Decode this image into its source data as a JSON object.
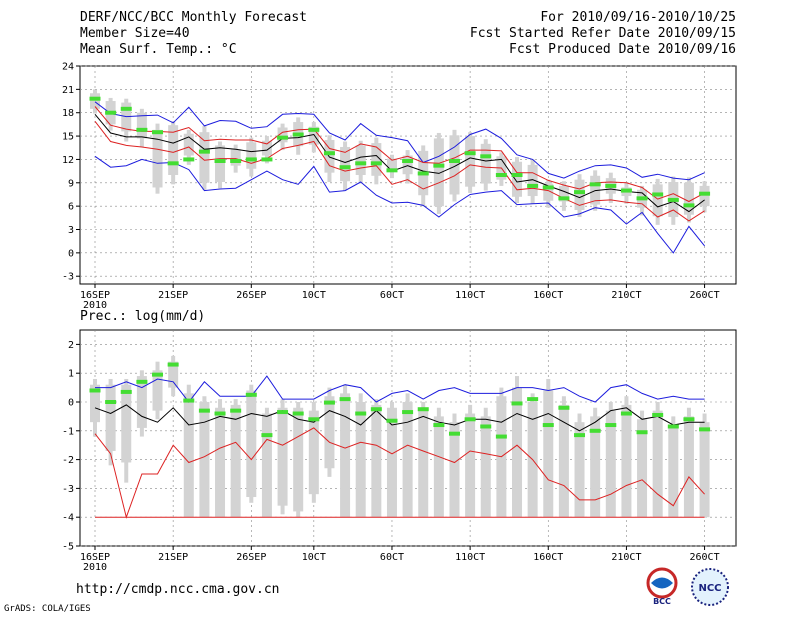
{
  "header": {
    "title": "DERF/NCC/BCC Monthly Forecast",
    "member_size": "Member Size=40",
    "variable": "Mean Surf. Temp.: °C",
    "period": "For 2010/09/16-2010/10/25",
    "start_date": "Fcst Started Refer Date 2010/09/15",
    "produced_date": "Fcst Produced Date 2010/09/16"
  },
  "footer": {
    "url": "http://cmdp.ncc.cma.gov.cn",
    "credit": "GrADS: COLA/IGES"
  },
  "logos": {
    "bcc": "BCC",
    "ncc": "NCC"
  },
  "colors": {
    "gray_bar": "#d3d3d3",
    "median": "#44dd33",
    "black": "#000000",
    "red": "#dd2222",
    "blue": "#1c1cdd",
    "grid": "#888888"
  },
  "chart_data": [
    {
      "type": "ensemble-box-line",
      "title": "Mean Surf. Temp.: °C",
      "ylim": [
        -4,
        24
      ],
      "yticks": [
        -3,
        0,
        3,
        6,
        9,
        12,
        15,
        18,
        21,
        24
      ],
      "xticks": [
        {
          "day": 0,
          "label": "16SEP"
        },
        {
          "day": 5,
          "label": "21SEP"
        },
        {
          "day": 10,
          "label": "26SEP"
        },
        {
          "day": 14,
          "label": "10CT"
        },
        {
          "day": 19,
          "label": "60CT"
        },
        {
          "day": 24,
          "label": "110CT"
        },
        {
          "day": 29,
          "label": "160CT"
        },
        {
          "day": 34,
          "label": "210CT"
        },
        {
          "day": 39,
          "label": "260CT"
        }
      ],
      "year_label": "2010",
      "days": 40,
      "box_low": [
        18.5,
        16.5,
        15.6,
        14.7,
        8.4,
        10.0,
        12.5,
        9.0,
        9.1,
        11.2,
        10.8,
        12.5,
        14.2,
        13.7,
        13.9,
        10.3,
        9.2,
        10.0,
        9.9,
        10.7,
        10.1,
        7.4,
        6.0,
        7.5,
        8.5,
        8.9,
        9.4,
        7.2,
        7.3,
        6.7,
        6.6,
        5.5,
        6.2,
        7.6,
        7.3,
        5.8,
        4.7,
        4.6,
        4.9,
        6.0
      ],
      "box_high": [
        20.5,
        19.5,
        19.3,
        18.0,
        15.8,
        16.4,
        15.3,
        15.5,
        13.8,
        13.3,
        14.2,
        14.4,
        16.1,
        16.8,
        16.2,
        14.5,
        13.6,
        13.8,
        14.1,
        12.1,
        12.5,
        13.1,
        14.7,
        15.1,
        15.0,
        14.0,
        12.4,
        11.7,
        11.3,
        8.9,
        8.6,
        9.4,
        9.9,
        9.6,
        8.4,
        8.1,
        8.8,
        9.1,
        9.0,
        8.6
      ],
      "whisker_low": [
        17.9,
        15.7,
        14.3,
        13.6,
        7.6,
        8.8,
        11.3,
        8.1,
        8.3,
        10.3,
        9.8,
        11.5,
        13.2,
        12.6,
        12.9,
        9.1,
        8.0,
        8.9,
        8.8,
        9.6,
        8.9,
        6.0,
        5.0,
        6.6,
        7.7,
        8.0,
        8.6,
        6.4,
        6.3,
        5.8,
        5.4,
        4.6,
        5.4,
        6.4,
        6.3,
        4.8,
        3.6,
        3.6,
        3.9,
        5.2
      ],
      "whisker_high": [
        21.0,
        19.9,
        19.8,
        18.5,
        16.6,
        16.9,
        15.8,
        16.3,
        14.3,
        13.9,
        14.8,
        15.0,
        16.6,
        17.4,
        16.8,
        15.1,
        14.3,
        14.4,
        14.8,
        12.6,
        13.2,
        13.8,
        15.4,
        15.8,
        15.5,
        14.6,
        12.9,
        12.3,
        12.0,
        9.4,
        9.2,
        10.1,
        10.6,
        10.3,
        9.1,
        8.6,
        9.5,
        9.8,
        9.7,
        9.2
      ],
      "median": [
        19.8,
        18.0,
        18.5,
        15.8,
        15.5,
        11.5,
        12.0,
        13.0,
        11.8,
        11.8,
        12.0,
        12.0,
        14.8,
        15.2,
        15.8,
        12.8,
        11.0,
        11.5,
        11.5,
        10.6,
        11.8,
        10.2,
        11.2,
        11.8,
        12.8,
        12.4,
        10.0,
        10.0,
        8.6,
        8.4,
        7.0,
        7.8,
        8.8,
        8.6,
        8.0,
        7.0,
        7.5,
        6.8,
        6.1,
        7.6
      ],
      "series": [
        {
          "name": "max",
          "color": "blue",
          "values": [
            19.4,
            17.9,
            17.5,
            17.6,
            17.7,
            16.7,
            18.7,
            16.3,
            17.0,
            16.9,
            16.0,
            16.2,
            17.8,
            17.9,
            17.8,
            15.4,
            14.5,
            16.6,
            15.1,
            14.8,
            14.4,
            11.6,
            12.4,
            13.6,
            15.2,
            15.9,
            14.7,
            12.6,
            12.0,
            10.2,
            9.6,
            10.5,
            11.2,
            11.3,
            10.9,
            9.7,
            10.1,
            9.6,
            9.4,
            10.3
          ]
        },
        {
          "name": "upper",
          "color": "red",
          "values": [
            18.8,
            16.4,
            15.9,
            15.6,
            15.6,
            15.5,
            16.1,
            14.4,
            14.6,
            14.5,
            14.5,
            14.0,
            15.5,
            15.8,
            15.9,
            13.4,
            12.9,
            14.0,
            13.6,
            11.9,
            12.4,
            11.6,
            11.5,
            12.2,
            13.2,
            13.2,
            13.1,
            10.3,
            10.3,
            9.3,
            8.7,
            8.2,
            9.0,
            9.1,
            9.0,
            8.4,
            6.9,
            7.6,
            6.6,
            7.7
          ]
        },
        {
          "name": "mean",
          "color": "black",
          "values": [
            17.8,
            15.4,
            14.9,
            14.9,
            14.6,
            14.1,
            14.9,
            13.3,
            13.5,
            13.3,
            13.0,
            13.2,
            14.7,
            14.8,
            15.2,
            12.3,
            11.6,
            12.3,
            12.5,
            10.5,
            11.2,
            10.5,
            10.2,
            11.1,
            12.2,
            11.8,
            12.0,
            9.1,
            9.4,
            8.6,
            7.9,
            7.1,
            8.0,
            8.2,
            7.9,
            7.7,
            5.9,
            6.6,
            5.3,
            6.8
          ]
        },
        {
          "name": "lower",
          "color": "red",
          "values": [
            16.9,
            14.3,
            13.8,
            13.6,
            13.3,
            12.9,
            13.6,
            11.9,
            12.1,
            12.1,
            11.5,
            12.1,
            13.4,
            13.8,
            14.3,
            11.2,
            10.5,
            10.9,
            11.2,
            8.8,
            9.4,
            8.2,
            9.0,
            9.9,
            11.3,
            11.0,
            10.9,
            8.1,
            8.3,
            8.0,
            7.0,
            6.1,
            6.7,
            6.8,
            6.5,
            6.3,
            4.6,
            5.5,
            4.1,
            5.4
          ]
        },
        {
          "name": "min",
          "color": "blue",
          "values": [
            12.4,
            11.0,
            11.2,
            12.0,
            11.5,
            11.6,
            10.7,
            8.0,
            8.2,
            8.3,
            9.4,
            10.5,
            9.4,
            8.8,
            11.1,
            7.8,
            8.0,
            9.1,
            7.4,
            6.4,
            6.5,
            6.1,
            4.6,
            6.2,
            7.5,
            7.8,
            8.0,
            6.2,
            6.3,
            6.4,
            4.6,
            5.0,
            5.8,
            5.5,
            3.7,
            5.2,
            2.5,
            0.0,
            3.4,
            0.9
          ]
        }
      ]
    },
    {
      "type": "ensemble-box-line",
      "title": "Prec.: log(mm/d)",
      "ylim": [
        -5,
        2.5
      ],
      "yticks": [
        -5,
        -4,
        -3,
        -2,
        -1,
        0,
        1,
        2
      ],
      "xticks": [
        {
          "day": 0,
          "label": "16SEP"
        },
        {
          "day": 5,
          "label": "21SEP"
        },
        {
          "day": 10,
          "label": "26SEP"
        },
        {
          "day": 14,
          "label": "10CT"
        },
        {
          "day": 19,
          "label": "60CT"
        },
        {
          "day": 24,
          "label": "110CT"
        },
        {
          "day": 29,
          "label": "160CT"
        },
        {
          "day": 34,
          "label": "210CT"
        },
        {
          "day": 39,
          "label": "260CT"
        }
      ],
      "year_label": "2010",
      "days": 40,
      "box_low": [
        -0.7,
        -1.7,
        -2.1,
        -0.9,
        -0.3,
        0.5,
        -4.0,
        -4.0,
        -4.0,
        -4.0,
        -3.3,
        -4.0,
        -3.6,
        -3.8,
        -3.2,
        -2.3,
        -4.0,
        -4.0,
        -4.0,
        -4.0,
        -4.0,
        -4.0,
        -4.0,
        -4.0,
        -4.0,
        -4.0,
        -4.0,
        -4.0,
        -4.0,
        -4.0,
        -4.0,
        -4.0,
        -4.0,
        -4.0,
        -4.0,
        -4.0,
        -4.0,
        -4.0,
        -4.0,
        -4.0
      ],
      "box_high": [
        0.6,
        0.6,
        0.6,
        0.9,
        1.1,
        1.4,
        0.3,
        0.0,
        -0.2,
        -0.1,
        0.4,
        -0.4,
        -0.2,
        -0.2,
        -0.3,
        0.2,
        0.3,
        0.0,
        -0.1,
        -0.2,
        0.0,
        -0.2,
        -0.5,
        -0.7,
        -0.4,
        -0.5,
        0.2,
        0.5,
        0.0,
        0.4,
        -0.1,
        -0.7,
        -0.5,
        -0.3,
        -0.1,
        -0.6,
        -0.3,
        -0.8,
        -0.5,
        -0.7
      ],
      "whisker_low": [
        -1.2,
        -2.2,
        -2.8,
        -1.2,
        -0.6,
        0.2,
        -4.0,
        -4.0,
        -4.0,
        -4.0,
        -3.5,
        -4.0,
        -3.9,
        -4.0,
        -3.5,
        -2.6,
        -4.0,
        -4.0,
        -4.0,
        -4.0,
        -4.0,
        -4.0,
        -4.0,
        -4.0,
        -4.0,
        -4.0,
        -4.0,
        -4.0,
        -4.0,
        -4.0,
        -4.0,
        -4.0,
        -4.0,
        -4.0,
        -4.0,
        -4.0,
        -4.0,
        -4.0,
        -4.0,
        -4.0
      ],
      "whisker_high": [
        0.8,
        0.8,
        0.8,
        1.1,
        1.4,
        1.6,
        0.6,
        0.2,
        0.1,
        0.1,
        0.6,
        -0.2,
        0.1,
        0.0,
        0.0,
        0.5,
        0.6,
        0.3,
        0.1,
        0.0,
        0.3,
        0.0,
        -0.2,
        -0.4,
        -0.1,
        -0.2,
        0.5,
        0.9,
        0.3,
        0.8,
        0.2,
        -0.4,
        -0.2,
        0.0,
        0.2,
        -0.3,
        0.0,
        -0.5,
        -0.2,
        -0.4
      ],
      "median": [
        0.4,
        0.0,
        0.35,
        0.7,
        0.95,
        1.3,
        0.05,
        -0.3,
        -0.4,
        -0.3,
        0.25,
        -1.15,
        -0.35,
        -0.4,
        -0.6,
        -0.02,
        0.1,
        -0.4,
        -0.25,
        -0.65,
        -0.35,
        -0.25,
        -0.8,
        -1.1,
        -0.6,
        -0.85,
        -1.2,
        -0.05,
        0.1,
        -0.8,
        -0.2,
        -1.15,
        -1.0,
        -0.8,
        -0.4,
        -1.05,
        -0.45,
        -0.85,
        -0.6,
        -0.95
      ],
      "series": [
        {
          "name": "max",
          "color": "blue",
          "values": [
            0.5,
            0.5,
            0.7,
            0.5,
            0.8,
            0.7,
            -0.0,
            0.7,
            0.2,
            0.2,
            0.2,
            0.9,
            0.1,
            0.1,
            0.1,
            0.4,
            0.6,
            0.5,
            0.0,
            0.3,
            0.4,
            0.1,
            0.4,
            0.5,
            0.3,
            0.3,
            0.3,
            0.5,
            0.5,
            0.4,
            0.5,
            0.2,
            0.0,
            0.5,
            0.6,
            0.3,
            0.1,
            0.2,
            0.1,
            0.1
          ]
        },
        {
          "name": "mean",
          "color": "black",
          "values": [
            -0.2,
            -0.4,
            -0.1,
            -0.5,
            -0.7,
            -0.2,
            -0.8,
            -0.7,
            -0.5,
            -0.6,
            -0.4,
            -0.5,
            -0.3,
            -0.6,
            -0.7,
            -0.3,
            -0.5,
            -0.8,
            -0.3,
            -0.8,
            -0.7,
            -0.5,
            -0.7,
            -0.8,
            -0.6,
            -0.6,
            -0.7,
            -0.4,
            -0.6,
            -0.4,
            -0.7,
            -1.0,
            -0.7,
            -0.3,
            -0.2,
            -0.6,
            -0.5,
            -0.8,
            -0.7,
            -0.7
          ]
        },
        {
          "name": "lower",
          "color": "red",
          "values": [
            -1.1,
            -1.8,
            -4.0,
            -2.5,
            -2.5,
            -1.5,
            -2.1,
            -1.9,
            -1.6,
            -1.4,
            -2.0,
            -1.3,
            -1.5,
            -1.2,
            -0.9,
            -1.4,
            -1.6,
            -1.4,
            -1.5,
            -1.8,
            -1.5,
            -1.7,
            -1.9,
            -2.1,
            -1.7,
            -1.8,
            -1.9,
            -1.5,
            -2.0,
            -2.7,
            -2.9,
            -3.4,
            -3.4,
            -3.2,
            -2.9,
            -2.7,
            -3.2,
            -3.6,
            -2.6,
            -3.2
          ]
        },
        {
          "name": "floor",
          "color": "red",
          "values": [
            -4.0,
            -4.0,
            -4.0,
            -4.0,
            -4.0,
            -4.0,
            -4.0,
            -4.0,
            -4.0,
            -4.0,
            -4.0,
            -4.0,
            -4.0,
            -4.0,
            -4.0,
            -4.0,
            -4.0,
            -4.0,
            -4.0,
            -4.0,
            -4.0,
            -4.0,
            -4.0,
            -4.0,
            -4.0,
            -4.0,
            -4.0,
            -4.0,
            -4.0,
            -4.0,
            -4.0,
            -4.0,
            -4.0,
            -4.0,
            -4.0,
            -4.0,
            -4.0,
            -4.0,
            -4.0,
            -4.0
          ]
        }
      ]
    }
  ]
}
